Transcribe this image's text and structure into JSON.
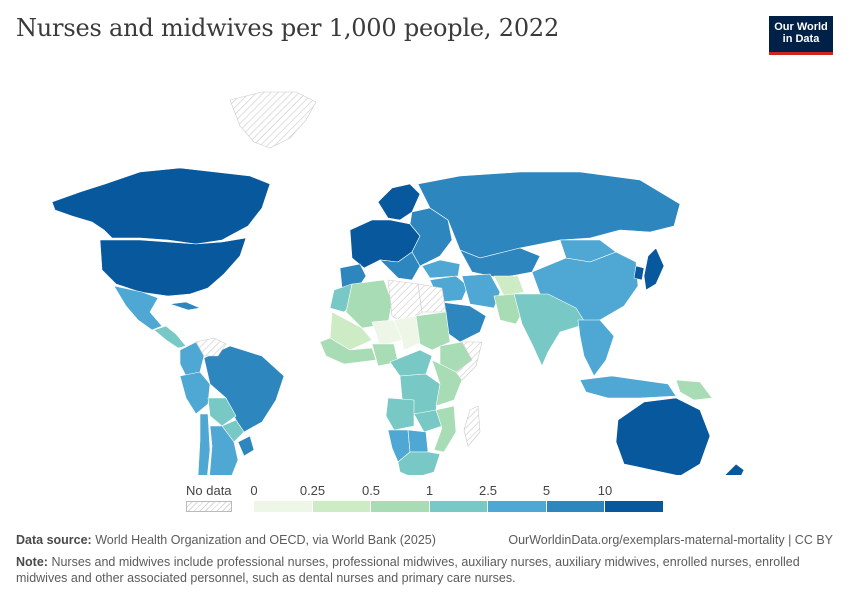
{
  "header": {
    "title": "Nurses and midwives per 1,000 people, 2022",
    "logo_line1": "Our World",
    "logo_line2": "in Data"
  },
  "legend": {
    "no_data_label": "No data",
    "bins": [
      "0",
      "0.25",
      "0.5",
      "1",
      "2.5",
      "5",
      "10"
    ],
    "colors": [
      "#eef7e7",
      "#cdebc5",
      "#a8dcb5",
      "#78c8c5",
      "#4ea8d3",
      "#2e86be",
      "#08589e"
    ],
    "no_data_color": "#e3e3e3"
  },
  "footer": {
    "source_label": "Data source:",
    "source_text": "World Health Organization and OECD, via World Bank (2025)",
    "url_text": "OurWorldinData.org/exemplars-maternal-mortality | CC BY",
    "note_label": "Note:",
    "note_text": "Nurses and midwives include professional nurses, professional midwives, auxiliary nurses, auxiliary midwives, enrolled nurses, enrolled midwives and other associated personnel, such as dental nurses and primary care nurses."
  },
  "map": {
    "regions": [
      {
        "name": "Canada",
        "bin": 6
      },
      {
        "name": "United States",
        "bin": 6
      },
      {
        "name": "Greenland",
        "bin": -1
      },
      {
        "name": "Mexico",
        "bin": 4
      },
      {
        "name": "Central America",
        "bin": 3
      },
      {
        "name": "Cuba",
        "bin": 5
      },
      {
        "name": "Brazil",
        "bin": 5
      },
      {
        "name": "Colombia",
        "bin": 4
      },
      {
        "name": "Venezuela",
        "bin": -1
      },
      {
        "name": "Peru",
        "bin": 4
      },
      {
        "name": "Bolivia",
        "bin": 3
      },
      {
        "name": "Paraguay",
        "bin": 3
      },
      {
        "name": "Argentina",
        "bin": 4
      },
      {
        "name": "Chile",
        "bin": 4
      },
      {
        "name": "Uruguay",
        "bin": 5
      },
      {
        "name": "Western Europe",
        "bin": 6
      },
      {
        "name": "Southern Europe",
        "bin": 5
      },
      {
        "name": "Iberia",
        "bin": 5
      },
      {
        "name": "Nordics",
        "bin": 6
      },
      {
        "name": "Eastern Europe",
        "bin": 5
      },
      {
        "name": "Russia",
        "bin": 5
      },
      {
        "name": "Kazakhstan",
        "bin": 5
      },
      {
        "name": "Mongolia",
        "bin": 4
      },
      {
        "name": "China",
        "bin": 4
      },
      {
        "name": "Japan",
        "bin": 6
      },
      {
        "name": "Korea",
        "bin": 6
      },
      {
        "name": "Turkey",
        "bin": 4
      },
      {
        "name": "Middle East",
        "bin": 4
      },
      {
        "name": "Saudi Arabia",
        "bin": 5
      },
      {
        "name": "Iran",
        "bin": 4
      },
      {
        "name": "Afghanistan",
        "bin": 1
      },
      {
        "name": "Pakistan",
        "bin": 2
      },
      {
        "name": "India",
        "bin": 3
      },
      {
        "name": "Southeast Asia",
        "bin": 4
      },
      {
        "name": "Indonesia",
        "bin": 4
      },
      {
        "name": "Papua New Guinea",
        "bin": 2
      },
      {
        "name": "Australia",
        "bin": 6
      },
      {
        "name": "New Zealand",
        "bin": 6
      },
      {
        "name": "Morocco",
        "bin": 3
      },
      {
        "name": "Algeria",
        "bin": 2
      },
      {
        "name": "Libya",
        "bin": -1
      },
      {
        "name": "Egypt",
        "bin": -1
      },
      {
        "name": "Mali",
        "bin": 1
      },
      {
        "name": "Niger",
        "bin": 0
      },
      {
        "name": "Chad",
        "bin": 0
      },
      {
        "name": "Sudan",
        "bin": 2
      },
      {
        "name": "Ethiopia",
        "bin": 2
      },
      {
        "name": "Somalia",
        "bin": -1
      },
      {
        "name": "West Africa",
        "bin": 2
      },
      {
        "name": "Nigeria",
        "bin": 2
      },
      {
        "name": "Central Africa",
        "bin": 3
      },
      {
        "name": "DR Congo",
        "bin": 3
      },
      {
        "name": "East Africa",
        "bin": 2
      },
      {
        "name": "Angola",
        "bin": 3
      },
      {
        "name": "Zambia",
        "bin": 3
      },
      {
        "name": "Mozambique",
        "bin": 2
      },
      {
        "name": "Namibia",
        "bin": 4
      },
      {
        "name": "Botswana",
        "bin": 4
      },
      {
        "name": "South Africa",
        "bin": 3
      },
      {
        "name": "Madagascar",
        "bin": -1
      }
    ]
  }
}
